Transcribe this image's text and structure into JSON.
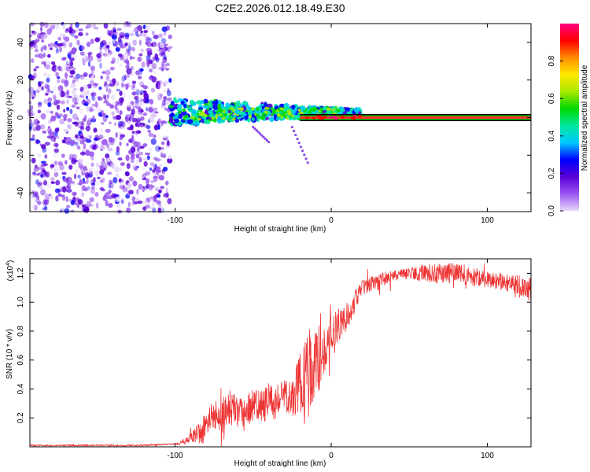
{
  "title": "C2E2.2026.012.18.49.E30",
  "colors": {
    "snr_line": "#ee3333",
    "ref_band": "#00c000",
    "ref_line": "#ff3030",
    "scatter_sparse": "#b58ee8",
    "scatter_dense": "#5a00c8",
    "background": "#ffffff",
    "axis": "#000000"
  },
  "chart_data": [
    {
      "id": "spectrum",
      "type": "scatter",
      "title": "C2E2.2026.012.18.49.E30",
      "xlabel": "Height of straight line (km)",
      "ylabel": "Frequency (Hz)",
      "xlim": [
        -193,
        128
      ],
      "ylim": [
        -50,
        50
      ],
      "x_ticks": [
        -100,
        0,
        100
      ],
      "x_tick_labels": [
        "-100",
        "0",
        "100"
      ],
      "y_ticks": [
        -40,
        -20,
        0,
        20,
        40
      ],
      "y_tick_labels": [
        "-40",
        "-20",
        "0",
        "20",
        "40"
      ],
      "grid": false,
      "regions": [
        {
          "name": "noise",
          "x_range": [
            -193,
            -103
          ],
          "y_range": [
            -50,
            50
          ],
          "amplitude": [
            0.0,
            0.25
          ]
        },
        {
          "name": "transition",
          "x_range": [
            -103,
            20
          ],
          "y_center": 3,
          "y_spread": [
            14,
            2
          ],
          "amplitude": [
            0.2,
            0.55
          ]
        },
        {
          "name": "signal-line",
          "x_range": [
            -20,
            128
          ],
          "y_center": 0,
          "amplitude": 1.0
        }
      ],
      "streaks": [
        {
          "x": [
            -50,
            -40
          ],
          "y": [
            -5,
            -13
          ]
        },
        {
          "x": [
            -25,
            -15
          ],
          "y": [
            -5,
            -24
          ]
        }
      ],
      "colorbar": {
        "label": "Normalized spectral amplitude",
        "range": [
          0.0,
          1.0
        ],
        "ticks": [
          0.0,
          0.2,
          0.4,
          0.6,
          0.8
        ],
        "tick_labels": [
          "0.0",
          "0.2",
          "0.4",
          "0.6",
          "0.8"
        ],
        "colormap": [
          "#e6d8fa",
          "#9a55f0",
          "#5a00d8",
          "#0000ff",
          "#00c8ff",
          "#00e8a0",
          "#00d800",
          "#a8e800",
          "#ffe800",
          "#ff8c00",
          "#ff0000",
          "#ff0080"
        ]
      }
    },
    {
      "id": "snr",
      "type": "line",
      "xlabel": "Height of straight line (km)",
      "ylabel": "SNR (10 * v/v)",
      "y_multiplier_label": "(x10",
      "y_multiplier_exp": "4",
      "y_multiplier_close": ")",
      "xlim": [
        -193,
        128
      ],
      "ylim": [
        0.0,
        1.3
      ],
      "x_ticks": [
        -100,
        0,
        100
      ],
      "x_tick_labels": [
        "-100",
        "0",
        "100"
      ],
      "y_ticks": [
        0.2,
        0.4,
        0.6,
        0.8,
        1.0,
        1.2
      ],
      "y_tick_labels": [
        "0.2",
        "0.4",
        "0.6",
        "0.8",
        "1.0",
        "1.2"
      ],
      "grid": false,
      "series": [
        {
          "name": "SNR",
          "x": [
            -193,
            -180,
            -160,
            -140,
            -120,
            -100,
            -95,
            -90,
            -85,
            -82,
            -80,
            -75,
            -70,
            -65,
            -60,
            -55,
            -50,
            -45,
            -40,
            -35,
            -30,
            -25,
            -20,
            -18,
            -15,
            -12,
            -10,
            -8,
            -5,
            -2,
            0,
            5,
            10,
            15,
            20,
            30,
            40,
            50,
            60,
            70,
            80,
            90,
            100,
            110,
            120,
            128
          ],
          "mean": [
            0.01,
            0.01,
            0.01,
            0.01,
            0.01,
            0.02,
            0.03,
            0.06,
            0.1,
            0.14,
            0.16,
            0.22,
            0.2,
            0.28,
            0.24,
            0.22,
            0.3,
            0.26,
            0.32,
            0.3,
            0.35,
            0.32,
            0.45,
            0.4,
            0.5,
            0.55,
            0.6,
            0.6,
            0.65,
            0.72,
            0.78,
            0.85,
            0.9,
            1.0,
            1.1,
            1.15,
            1.18,
            1.2,
            1.2,
            1.2,
            1.2,
            1.18,
            1.16,
            1.14,
            1.12,
            1.08
          ],
          "spread": [
            0.01,
            0.01,
            0.01,
            0.01,
            0.01,
            0.01,
            0.03,
            0.06,
            0.16,
            0.28,
            0.18,
            0.22,
            0.22,
            0.26,
            0.22,
            0.22,
            0.24,
            0.24,
            0.24,
            0.24,
            0.26,
            0.28,
            0.4,
            0.55,
            0.62,
            0.55,
            0.4,
            0.5,
            0.4,
            0.3,
            0.25,
            0.22,
            0.2,
            0.16,
            0.1,
            0.1,
            0.08,
            0.08,
            0.12,
            0.15,
            0.15,
            0.14,
            0.12,
            0.12,
            0.14,
            0.18
          ]
        }
      ]
    }
  ]
}
